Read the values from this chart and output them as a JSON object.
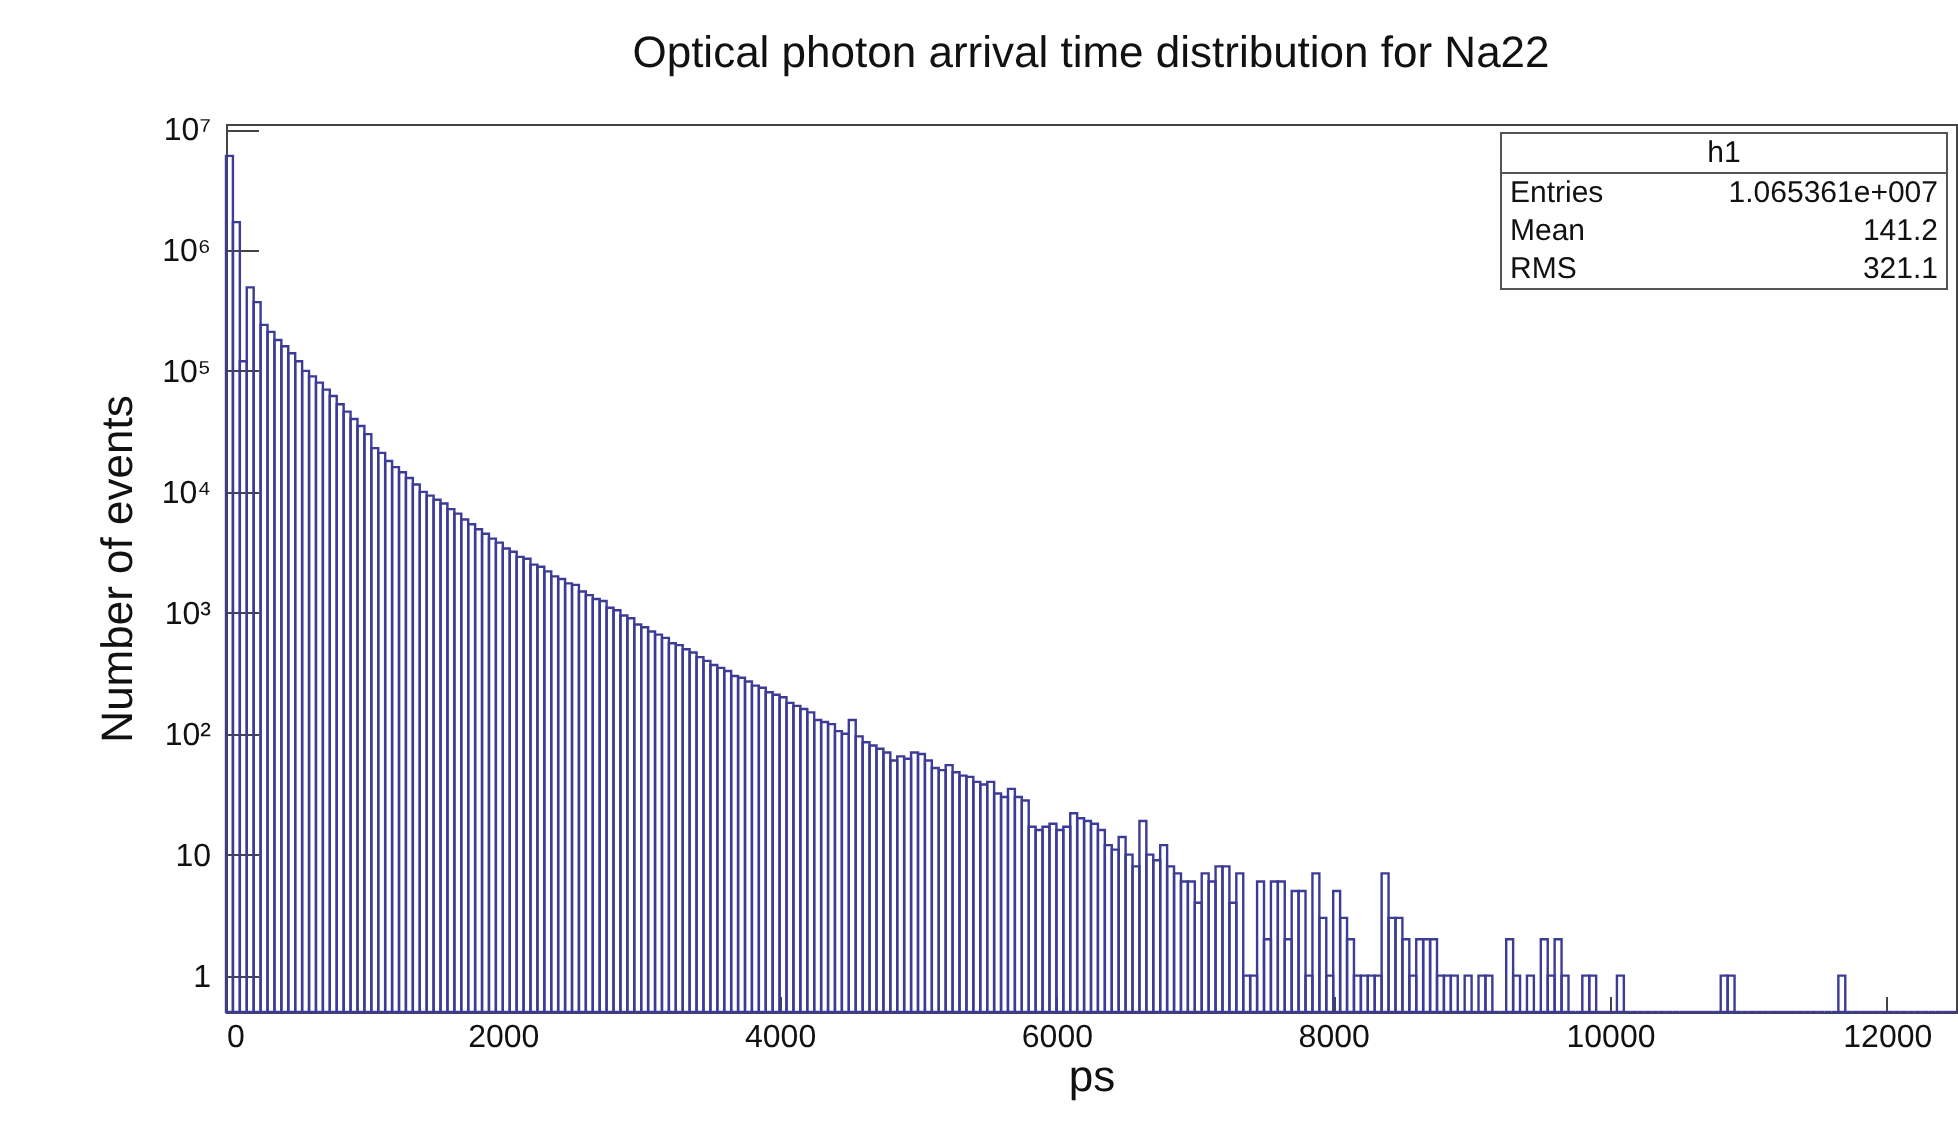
{
  "chart_data": {
    "type": "histogram",
    "title": "Optical photon arrival time distribution for Na22",
    "xlabel": "ps",
    "ylabel": "Number of events",
    "annotations": [
      "h1",
      "Entries",
      "1.065361e+007",
      "Mean",
      "141.2",
      "RMS",
      "321.1"
    ],
    "color": "#3c3c96",
    "bins": [
      0,
      50,
      100,
      150,
      200,
      250,
      300,
      350,
      400,
      450,
      500,
      550,
      600,
      650,
      700,
      750,
      800,
      850,
      900,
      950,
      1000,
      1050,
      1100,
      1150,
      1200,
      1250,
      1300,
      1350,
      1400,
      1450,
      1500,
      1550,
      1600,
      1650,
      1700,
      1750,
      1800,
      1850,
      1900,
      1950,
      2000,
      2050,
      2100,
      2150,
      2200,
      2250,
      2300,
      2350,
      2400,
      2450,
      2500,
      2550,
      2600,
      2650,
      2700,
      2750,
      2800,
      2850,
      2900,
      2950,
      3000,
      3050,
      3100,
      3150,
      3200,
      3250,
      3300,
      3350,
      3400,
      3450,
      3500,
      3550,
      3600,
      3650,
      3700,
      3750,
      3800,
      3850,
      3900,
      3950,
      4000,
      4050,
      4100,
      4150,
      4200,
      4250,
      4300,
      4350,
      4400,
      4450,
      4500,
      4550,
      4600,
      4650,
      4700,
      4750,
      4800,
      4850,
      4900,
      4950,
      5000,
      5050,
      5100,
      5150,
      5200,
      5250,
      5300,
      5350,
      5400,
      5450,
      5500,
      5550,
      5600,
      5650,
      5700,
      5750,
      5800,
      5850,
      5900,
      5950,
      6000,
      6050,
      6100,
      6150,
      6200,
      6250,
      6300,
      6350,
      6400,
      6450,
      6500,
      6550,
      6600,
      6650,
      6700,
      6750,
      6800,
      6850,
      6900,
      6950,
      7000,
      7050,
      7100,
      7150,
      7200,
      7250,
      7300,
      7350,
      7400,
      7450,
      7500,
      7550,
      7600,
      7650,
      7700,
      7750,
      7800,
      7850,
      7900,
      7950,
      8000,
      8050,
      8100,
      8150,
      8200,
      8250,
      8300,
      8350,
      8400,
      8450,
      8500,
      8550,
      8600,
      8650,
      8700,
      8750,
      8800,
      8850,
      8900,
      8950,
      9000,
      9050,
      9100,
      9150,
      9200,
      9250,
      9300,
      9350,
      9400,
      9450,
      9500,
      9550,
      9600,
      9650,
      9700,
      9750,
      9800,
      9850,
      9900,
      9950,
      10000,
      10050,
      10100,
      10150,
      10200,
      10250,
      10300,
      10350,
      10400,
      10450,
      10500,
      10550,
      10600,
      10650,
      10700,
      10750,
      10800,
      10850,
      10900,
      10950,
      11000,
      11050,
      11100,
      11150,
      11200,
      11250,
      11300,
      11350,
      11400,
      11450,
      11500,
      11550,
      11600,
      11650,
      11700,
      11750,
      11800,
      11850,
      11900,
      11950,
      12000,
      12050,
      12100,
      12150,
      12200,
      12250,
      12300,
      12350,
      12400,
      12450,
      12500
    ],
    "values": [
      6000000,
      1700000,
      120000,
      490000,
      370000,
      240000,
      210000,
      180000,
      160000,
      140000,
      120000,
      100000,
      90000,
      80000,
      70000,
      62000,
      53000,
      46000,
      40000,
      35000,
      30000,
      23000,
      21000,
      18000,
      16000,
      14500,
      13000,
      11500,
      10000,
      9300,
      8600,
      8000,
      7200,
      6600,
      5900,
      5400,
      4900,
      4500,
      4100,
      3800,
      3400,
      3200,
      2900,
      2800,
      2500,
      2400,
      2200,
      2000,
      1900,
      1750,
      1700,
      1500,
      1400,
      1300,
      1250,
      1100,
      1050,
      950,
      900,
      800,
      760,
      700,
      660,
      620,
      560,
      540,
      500,
      470,
      430,
      400,
      370,
      350,
      330,
      300,
      290,
      270,
      250,
      240,
      220,
      210,
      200,
      180,
      170,
      160,
      150,
      130,
      125,
      120,
      105,
      100,
      130,
      95,
      85,
      80,
      75,
      70,
      60,
      65,
      62,
      70,
      68,
      60,
      52,
      50,
      55,
      48,
      45,
      44,
      40,
      38,
      40,
      32,
      30,
      35,
      30,
      28,
      17,
      16,
      17,
      18,
      16,
      17,
      22,
      20,
      19,
      18,
      16,
      12,
      11,
      14,
      10,
      8,
      19,
      10,
      9,
      12,
      8,
      7,
      6,
      6,
      4,
      7,
      6,
      8,
      8,
      4,
      7,
      1,
      1,
      6,
      2,
      6,
      6,
      2,
      5,
      5,
      1,
      7,
      3,
      1,
      5,
      3,
      2,
      1,
      1,
      1,
      1,
      7,
      3,
      3,
      2,
      1,
      2,
      2,
      2,
      1,
      1,
      1,
      null,
      1,
      null,
      1,
      1,
      null,
      null,
      2,
      1,
      null,
      1,
      null,
      2,
      1,
      2,
      1,
      null,
      null,
      1,
      1,
      null,
      null,
      null,
      1,
      null,
      null,
      null,
      null,
      null,
      null,
      null,
      null,
      null,
      null,
      null,
      null,
      null,
      null,
      1,
      1,
      null,
      null,
      null,
      null,
      null,
      null,
      null,
      null,
      null,
      null,
      null,
      null,
      null,
      null,
      null,
      1,
      null,
      null,
      null,
      null,
      null,
      null,
      null,
      null,
      null,
      null,
      null,
      null,
      null,
      null,
      null,
      null
    ],
    "log": "y",
    "xlim": [
      0,
      12500
    ],
    "ylim": [
      0.5,
      11000000
    ],
    "xticks": [
      0,
      2000,
      4000,
      6000,
      8000,
      10000,
      12000
    ],
    "yticks": [
      1,
      10,
      {
        "value": 100,
        "label": "10²"
      },
      {
        "value": 1000,
        "label": "10³"
      },
      {
        "value": 10000,
        "label": "10⁴"
      },
      {
        "value": 100000,
        "label": "10⁵"
      },
      {
        "value": 1000000,
        "label": "10⁶"
      },
      {
        "value": 10000000,
        "label": "10⁷"
      }
    ],
    "grid": false
  }
}
